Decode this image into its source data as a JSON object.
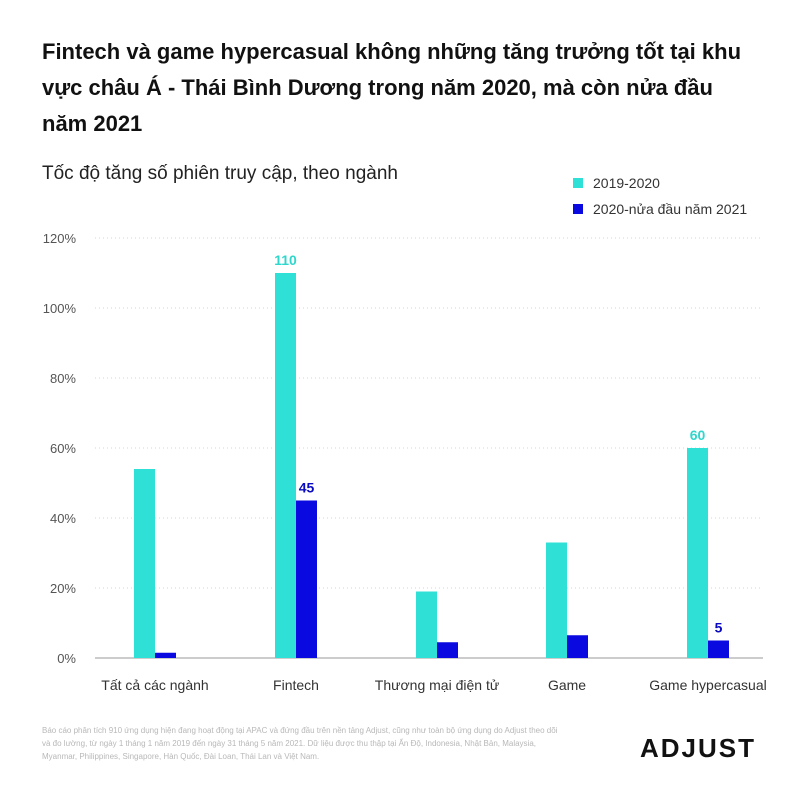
{
  "chart_data": {
    "type": "bar",
    "title": "Fintech và game hypercasual không những tăng trưởng tốt tại khu vực châu Á - Thái Bình Dương trong năm 2020, mà còn nửa đầu năm 2021",
    "subtitle": "Tốc độ tăng số phiên truy cập, theo ngành",
    "categories": [
      "Tất cả các ngành",
      "Fintech",
      "Thương mại điện tử",
      "Game",
      "Game hypercasual"
    ],
    "series": [
      {
        "name": "2019-2020",
        "color": "#2fe0d6",
        "values": [
          54,
          110,
          19,
          33,
          60
        ]
      },
      {
        "name": "2020-nửa đầu năm 2021",
        "color": "#0a0ae0",
        "values": [
          1.5,
          45,
          4.5,
          6.5,
          5
        ]
      }
    ],
    "data_labels": [
      {
        "series": 0,
        "index": 1,
        "text": "110"
      },
      {
        "series": 1,
        "index": 1,
        "text": "45"
      },
      {
        "series": 0,
        "index": 4,
        "text": "60"
      },
      {
        "series": 1,
        "index": 4,
        "text": "5"
      }
    ],
    "yticks": [
      "0%",
      "20%",
      "40%",
      "60%",
      "80%",
      "100%",
      "120%"
    ],
    "ylim": [
      0,
      120
    ],
    "xlabel": "",
    "ylabel": "",
    "grid": true,
    "legend": "top-right"
  },
  "footnote": "Báo cáo phân tích 910 ứng dụng hiện đang hoạt động tại APAC và đứng đầu trên nền tảng Adjust, cũng như toàn bộ ứng dụng do Adjust theo dõi và đo lường, từ ngày 1 tháng 1 năm 2019 đến ngày 31 tháng 5 năm 2021. Dữ liệu được thu thập tại Ấn Độ, Indonesia, Nhật Bản, Malaysia, Myanmar, Philippines, Singapore, Hàn Quốc, Đài Loan, Thái Lan và Việt Nam.",
  "logo": "ADJUST"
}
